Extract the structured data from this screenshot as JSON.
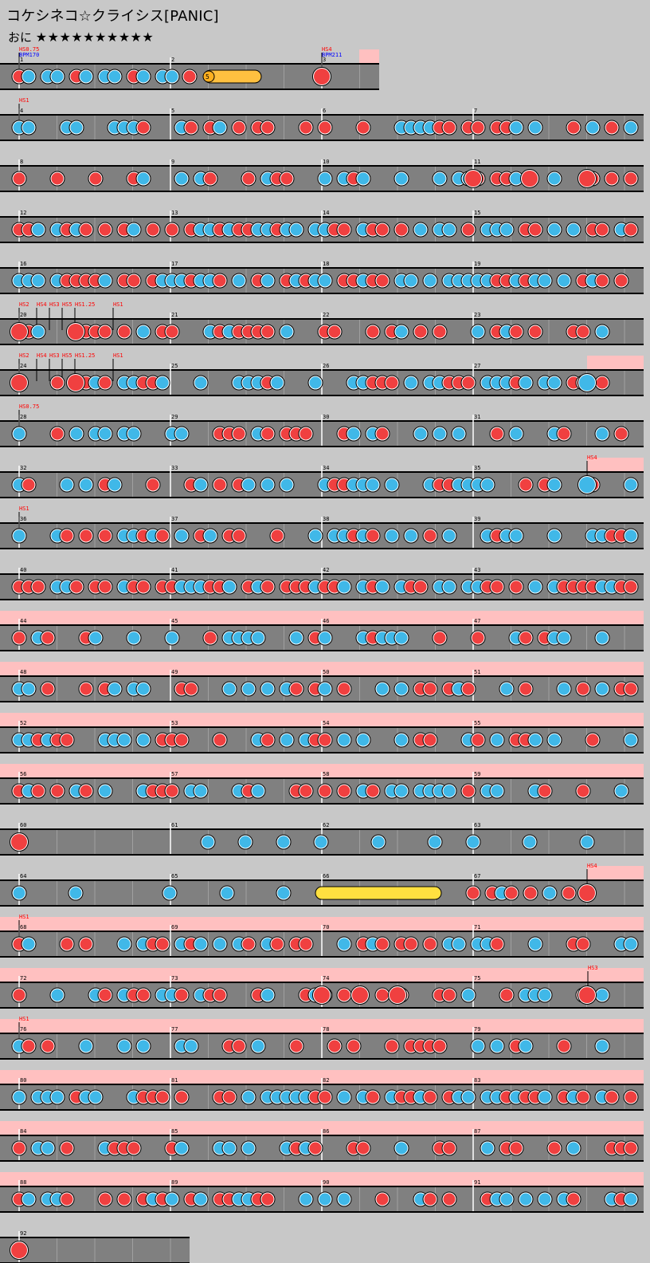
{
  "header": {
    "title": "コケシネコ☆クライシス[PANIC]",
    "difficulty_label": "おに",
    "stars": "★★★★★★★★★★"
  },
  "colors": {
    "background": "#c8c8c8",
    "lane": "#808080",
    "gogo_highlight": "#ffc0c0",
    "don": "#f04040",
    "ka": "#40b8e8",
    "roll": "#ffe040",
    "marker_text": "#ff0000",
    "bpm_text": "#0000ff"
  },
  "rows": [
    {
      "bars": [
        1,
        2,
        3
      ],
      "markers": [
        "HS0.75",
        "HS4"
      ],
      "bpm": [
        "BPM170",
        "BPM211"
      ]
    },
    {
      "bars": [
        4,
        5,
        6,
        7
      ],
      "markers": [
        "HS1"
      ]
    },
    {
      "bars": [
        8,
        9,
        10,
        11
      ]
    },
    {
      "bars": [
        12,
        13,
        14,
        15
      ]
    },
    {
      "bars": [
        16,
        17,
        18,
        19
      ]
    },
    {
      "bars": [
        20,
        21,
        22,
        23
      ],
      "markers": [
        "HS2",
        "HS4",
        "HS3",
        "HS5",
        "HS1.25",
        "HS1"
      ]
    },
    {
      "bars": [
        24,
        25,
        26,
        27
      ],
      "markers": [
        "HS2",
        "HS4",
        "HS3",
        "HS5",
        "HS1.25",
        "HS1"
      ]
    },
    {
      "bars": [
        28,
        29,
        30,
        31
      ],
      "markers": [
        "HS0.75"
      ]
    },
    {
      "bars": [
        32,
        33,
        34,
        35
      ],
      "markers": [
        "HS4"
      ]
    },
    {
      "bars": [
        36,
        37,
        38,
        39
      ],
      "markers": [
        "HS1"
      ]
    },
    {
      "bars": [
        40,
        41,
        42,
        43
      ]
    },
    {
      "bars": [
        44,
        45,
        46,
        47
      ]
    },
    {
      "bars": [
        48,
        49,
        50,
        51
      ]
    },
    {
      "bars": [
        52,
        53,
        54,
        55
      ]
    },
    {
      "bars": [
        56,
        57,
        58,
        59
      ]
    },
    {
      "bars": [
        60,
        61,
        62,
        63
      ]
    },
    {
      "bars": [
        64,
        65,
        66,
        67
      ],
      "markers": [
        "HS4"
      ]
    },
    {
      "bars": [
        68,
        69,
        70,
        71
      ],
      "markers": [
        "HS1"
      ]
    },
    {
      "bars": [
        72,
        73,
        74,
        75
      ],
      "markers": [
        "HS3"
      ]
    },
    {
      "bars": [
        76,
        77,
        78,
        79
      ],
      "markers": [
        "HS1"
      ]
    },
    {
      "bars": [
        80,
        81,
        82,
        83
      ]
    },
    {
      "bars": [
        84,
        85,
        86,
        87
      ]
    },
    {
      "bars": [
        88,
        89,
        90,
        91
      ]
    },
    {
      "bars": [
        92
      ]
    }
  ],
  "balloon_count": "5"
}
